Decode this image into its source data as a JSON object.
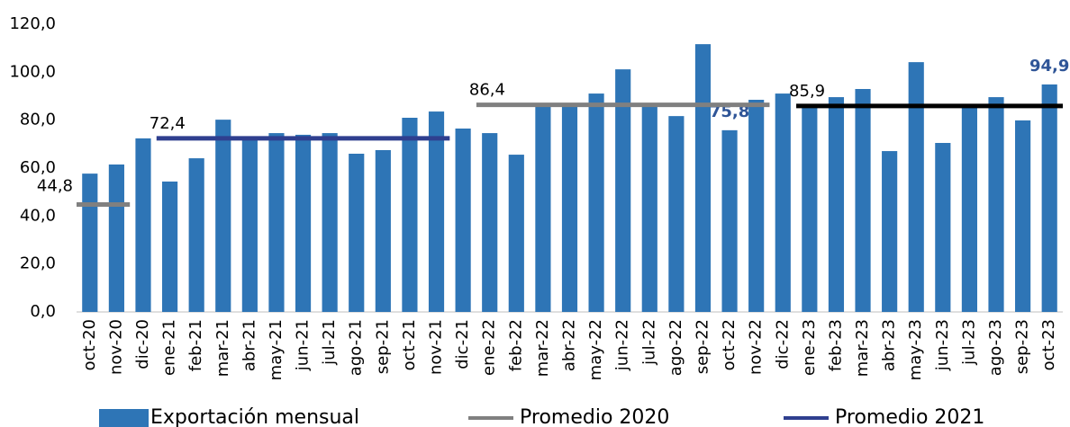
{
  "chart_data": {
    "type": "bar",
    "categories": [
      "oct-20",
      "nov-20",
      "dic-20",
      "ene-21",
      "feb-21",
      "mar-21",
      "abr-21",
      "may-21",
      "jun-21",
      "jul-21",
      "ago-21",
      "sep-21",
      "oct-21",
      "nov-21",
      "dic-21",
      "ene-22",
      "feb-22",
      "mar-22",
      "abr-22",
      "may-22",
      "jun-22",
      "jul-22",
      "ago-22",
      "sep-22",
      "oct-22",
      "nov-22",
      "dic-22",
      "ene-23",
      "feb-23",
      "mar-23",
      "abr-23",
      "may-23",
      "jun-23",
      "jul-23",
      "ago-23",
      "sep-23",
      "oct-23"
    ],
    "series": [
      {
        "name": "Exportación mensual",
        "type": "bar",
        "color": "#2e75b6",
        "values": [
          57.7,
          61.5,
          72.4,
          54.4,
          64.1,
          80.2,
          72.7,
          74.6,
          73.9,
          74.6,
          66.0,
          67.5,
          81.0,
          83.6,
          76.5,
          74.6,
          65.6,
          87.0,
          86.2,
          91.1,
          101.2,
          86.2,
          81.7,
          111.7,
          75.8,
          88.5,
          91.1,
          85.1,
          89.6,
          93.0,
          67.1,
          104.2,
          70.5,
          86.2,
          89.6,
          79.9,
          94.9
        ],
        "value_labels": [
          null,
          null,
          null,
          null,
          null,
          null,
          null,
          null,
          null,
          null,
          null,
          null,
          null,
          null,
          null,
          null,
          null,
          null,
          null,
          null,
          null,
          null,
          null,
          null,
          "75,8",
          null,
          null,
          null,
          null,
          null,
          null,
          null,
          null,
          null,
          null,
          null,
          "94,9"
        ]
      },
      {
        "name": "Promedio 2020",
        "type": "line",
        "color": "#808080",
        "values": [
          44.8,
          44.8,
          null,
          null,
          null,
          null,
          null,
          null,
          null,
          null,
          null,
          null,
          null,
          null,
          null,
          86.4,
          86.4,
          86.4,
          86.4,
          86.4,
          86.4,
          86.4,
          86.4,
          86.4,
          86.4,
          86.4,
          null,
          null,
          null,
          null,
          null,
          null,
          null,
          null,
          null,
          null,
          null
        ],
        "value_labels": [
          "44,8",
          null,
          null,
          null,
          null,
          null,
          null,
          null,
          null,
          null,
          null,
          null,
          null,
          null,
          null,
          "86,4",
          null,
          null,
          null,
          null,
          null,
          null,
          null,
          null,
          null,
          null,
          null,
          null,
          null,
          null,
          null,
          null,
          null,
          null,
          null,
          null,
          null
        ]
      },
      {
        "name": "Promedio 2021",
        "type": "line",
        "color": "#2f3f8f",
        "values": [
          null,
          null,
          null,
          72.4,
          72.4,
          72.4,
          72.4,
          72.4,
          72.4,
          72.4,
          72.4,
          72.4,
          72.4,
          72.4,
          null,
          null,
          null,
          null,
          null,
          null,
          null,
          null,
          null,
          null,
          null,
          null,
          null,
          null,
          null,
          null,
          null,
          null,
          null,
          null,
          null,
          null,
          null
        ],
        "value_labels": [
          null,
          null,
          null,
          "72,4",
          null,
          null,
          null,
          null,
          null,
          null,
          null,
          null,
          null,
          null,
          null,
          null,
          null,
          null,
          null,
          null,
          null,
          null,
          null,
          null,
          null,
          null,
          null,
          null,
          null,
          null,
          null,
          null,
          null,
          null,
          null,
          null,
          null
        ]
      },
      {
        "type": "line",
        "color": "#000000",
        "values": [
          null,
          null,
          null,
          null,
          null,
          null,
          null,
          null,
          null,
          null,
          null,
          null,
          null,
          null,
          null,
          null,
          null,
          null,
          null,
          null,
          null,
          null,
          null,
          null,
          null,
          null,
          null,
          85.9,
          85.9,
          85.9,
          85.9,
          85.9,
          85.9,
          85.9,
          85.9,
          85.9,
          85.9
        ],
        "value_labels": [
          null,
          null,
          null,
          null,
          null,
          null,
          null,
          null,
          null,
          null,
          null,
          null,
          null,
          null,
          null,
          null,
          null,
          null,
          null,
          null,
          null,
          null,
          null,
          null,
          null,
          null,
          null,
          "85,9",
          null,
          null,
          null,
          null,
          null,
          null,
          null,
          null,
          null
        ]
      }
    ],
    "ylim": [
      0,
      120
    ],
    "yticks": [
      {
        "value": 0,
        "label": "0,0"
      },
      {
        "value": 20,
        "label": "20,0"
      },
      {
        "value": 40,
        "label": "40,0"
      },
      {
        "value": 60,
        "label": "60,0"
      },
      {
        "value": 80,
        "label": "80,0"
      },
      {
        "value": 100,
        "label": "100,0"
      },
      {
        "value": 120,
        "label": "120,0"
      }
    ],
    "grid": false
  }
}
